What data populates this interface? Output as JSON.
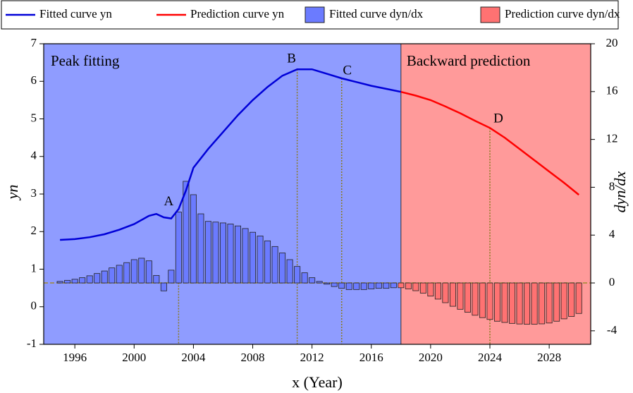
{
  "chart_data": {
    "type": "combo",
    "xlabel": "x (Year)",
    "ylabel": "yn",
    "y2label": "dyn/dx",
    "xlim": [
      1993.9,
      2030.8
    ],
    "xticks": [
      1996,
      2000,
      2004,
      2008,
      2012,
      2016,
      2020,
      2024,
      2028
    ],
    "ylim": [
      -1,
      7
    ],
    "yticks": [
      -1,
      0,
      1,
      2,
      3,
      4,
      5,
      6,
      7
    ],
    "y2lim": [
      -5.13,
      20
    ],
    "y2ticks": [
      -4,
      0,
      4,
      8,
      12,
      16,
      20
    ],
    "split_x": 2018,
    "regions": [
      {
        "label": "Peak fitting",
        "color": "#8f9cff"
      },
      {
        "label": "Backward prediction",
        "color": "#ff9a9a"
      }
    ],
    "annotations": [
      {
        "text": "A",
        "x": 2003,
        "y": 2.52,
        "color": "#1a1ad0"
      },
      {
        "text": "B",
        "x": 2011,
        "y": 6.32,
        "color": "#1a1ad0"
      },
      {
        "text": "C",
        "x": 2014,
        "y": 6.08,
        "color": "#1a1ad0"
      },
      {
        "text": "D",
        "x": 2024,
        "y": 4.76,
        "color": "#ff1010"
      }
    ],
    "series": [
      {
        "name": "Fitted curve yn",
        "type": "line",
        "color": "#0000d8",
        "x": [
          1995,
          1996,
          1997,
          1998,
          1999,
          2000,
          2001,
          2001.5,
          2002,
          2002.5,
          2003,
          2003.5,
          2004,
          2005,
          2006,
          2007,
          2008,
          2009,
          2010,
          2011,
          2012,
          2013,
          2014,
          2015,
          2016,
          2017,
          2018
        ],
        "values": [
          1.78,
          1.8,
          1.85,
          1.93,
          2.05,
          2.2,
          2.42,
          2.47,
          2.38,
          2.35,
          2.6,
          3.1,
          3.7,
          4.2,
          4.65,
          5.1,
          5.5,
          5.85,
          6.15,
          6.32,
          6.32,
          6.2,
          6.08,
          5.98,
          5.88,
          5.8,
          5.72
        ]
      },
      {
        "name": "Prediction curve yn",
        "type": "line",
        "color": "#ff0000",
        "x": [
          2018,
          2019,
          2020,
          2021,
          2022,
          2023,
          2024,
          2025,
          2026,
          2027,
          2028,
          2029,
          2030
        ],
        "values": [
          5.72,
          5.62,
          5.5,
          5.33,
          5.15,
          4.95,
          4.76,
          4.5,
          4.2,
          3.9,
          3.6,
          3.3,
          2.98
        ]
      },
      {
        "name": "Fitted curve dyn/dx",
        "type": "bar",
        "axis": "y2",
        "color": "#6b7bff",
        "x": [
          1995,
          1995.5,
          1996,
          1996.5,
          1997,
          1997.5,
          1998,
          1998.5,
          1999,
          1999.5,
          2000,
          2000.5,
          2001,
          2001.5,
          2002,
          2002.5,
          2003,
          2003.5,
          2004,
          2004.5,
          2005,
          2005.5,
          2006,
          2006.5,
          2007,
          2007.5,
          2008,
          2008.5,
          2009,
          2009.5,
          2010,
          2010.5,
          2011,
          2011.5,
          2012,
          2012.5,
          2013,
          2013.5,
          2014,
          2014.5,
          2015,
          2015.5,
          2016,
          2016.5,
          2017,
          2017.5
        ],
        "values": [
          0.13,
          0.22,
          0.31,
          0.44,
          0.6,
          0.79,
          1.0,
          1.26,
          1.48,
          1.7,
          1.95,
          2.07,
          1.85,
          0.63,
          -0.66,
          1.07,
          5.93,
          8.5,
          7.38,
          5.78,
          5.15,
          5.09,
          5.02,
          4.93,
          4.77,
          4.55,
          4.24,
          3.93,
          3.52,
          3.05,
          2.51,
          1.95,
          1.38,
          0.85,
          0.44,
          0.13,
          -0.1,
          -0.3,
          -0.45,
          -0.55,
          -0.55,
          -0.55,
          -0.5,
          -0.45,
          -0.45,
          -0.4
        ]
      },
      {
        "name": "Prediction curve dyn/dx",
        "type": "bar",
        "axis": "y2",
        "color": "#ff7272",
        "x": [
          2018,
          2018.5,
          2019,
          2019.5,
          2020,
          2020.5,
          2021,
          2021.5,
          2022,
          2022.5,
          2023,
          2023.5,
          2024,
          2024.5,
          2025,
          2025.5,
          2026,
          2026.5,
          2027,
          2027.5,
          2028,
          2028.5,
          2029,
          2029.5,
          2030
        ],
        "values": [
          -0.4,
          -0.5,
          -0.65,
          -0.85,
          -1.1,
          -1.35,
          -1.65,
          -1.95,
          -2.2,
          -2.45,
          -2.7,
          -2.9,
          -3.05,
          -3.2,
          -3.3,
          -3.38,
          -3.43,
          -3.45,
          -3.45,
          -3.42,
          -3.35,
          -3.2,
          -3.0,
          -2.8,
          -2.55
        ]
      }
    ]
  }
}
